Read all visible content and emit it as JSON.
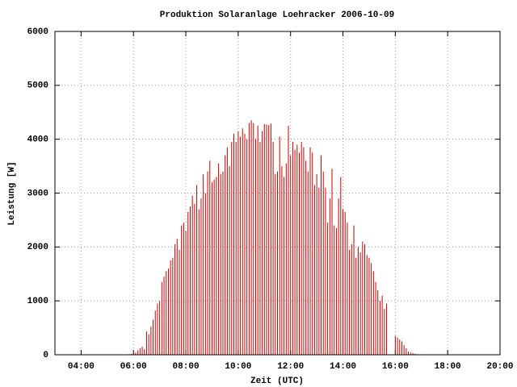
{
  "chart_data": {
    "type": "impulses",
    "title": "Produktion Solaranlage Loehracker 2006-10-09",
    "x_label": "Zeit (UTC)",
    "y_label": "Leistung [W]",
    "color": "#cc0000",
    "grid": true,
    "xlim": [
      "03:00",
      "20:00"
    ],
    "xticks": [
      "04:00",
      "06:00",
      "08:00",
      "10:00",
      "12:00",
      "14:00",
      "16:00",
      "18:00",
      "20:00"
    ],
    "ylim": [
      0,
      6000
    ],
    "yticks": [
      0,
      1000,
      2000,
      3000,
      4000,
      5000,
      6000
    ],
    "x": [
      "05:45",
      "05:50",
      "05:55",
      "06:00",
      "06:05",
      "06:10",
      "06:15",
      "06:20",
      "06:25",
      "06:30",
      "06:35",
      "06:40",
      "06:45",
      "06:50",
      "06:55",
      "07:00",
      "07:05",
      "07:10",
      "07:15",
      "07:20",
      "07:25",
      "07:30",
      "07:35",
      "07:40",
      "07:45",
      "07:50",
      "07:55",
      "08:00",
      "08:05",
      "08:10",
      "08:15",
      "08:20",
      "08:25",
      "08:30",
      "08:35",
      "08:40",
      "08:45",
      "08:50",
      "08:55",
      "09:00",
      "09:05",
      "09:10",
      "09:15",
      "09:20",
      "09:25",
      "09:30",
      "09:35",
      "09:40",
      "09:45",
      "09:50",
      "09:55",
      "10:00",
      "10:05",
      "10:10",
      "10:15",
      "10:20",
      "10:25",
      "10:30",
      "10:35",
      "10:40",
      "10:45",
      "10:50",
      "10:55",
      "11:00",
      "11:05",
      "11:10",
      "11:15",
      "11:20",
      "11:25",
      "11:30",
      "11:35",
      "11:40",
      "11:45",
      "11:50",
      "11:55",
      "12:00",
      "12:05",
      "12:10",
      "12:15",
      "12:20",
      "12:25",
      "12:30",
      "12:35",
      "12:40",
      "12:45",
      "12:50",
      "12:55",
      "13:00",
      "13:05",
      "13:10",
      "13:15",
      "13:20",
      "13:25",
      "13:30",
      "13:35",
      "13:40",
      "13:45",
      "13:50",
      "13:55",
      "14:00",
      "14:05",
      "14:10",
      "14:15",
      "14:20",
      "14:25",
      "14:30",
      "14:35",
      "14:40",
      "14:45",
      "14:50",
      "14:55",
      "15:00",
      "15:05",
      "15:10",
      "15:15",
      "15:20",
      "15:25",
      "15:30",
      "15:35",
      "15:40",
      "15:45",
      "15:50",
      "15:55",
      "16:00",
      "16:05",
      "16:10",
      "16:15",
      "16:20",
      "16:25",
      "16:30",
      "16:35",
      "16:40",
      "16:45",
      "16:50",
      "16:55",
      "17:00"
    ],
    "values": [
      5,
      10,
      15,
      20,
      40,
      80,
      120,
      150,
      100,
      430,
      380,
      520,
      650,
      820,
      950,
      1000,
      1350,
      1450,
      1550,
      1600,
      1750,
      1800,
      2050,
      2150,
      1950,
      2400,
      2450,
      2300,
      2650,
      2750,
      2950,
      2800,
      3150,
      2700,
      2900,
      3350,
      3000,
      3400,
      3600,
      3200,
      3250,
      3300,
      3550,
      3350,
      3400,
      3700,
      3850,
      3500,
      3950,
      4100,
      3950,
      4150,
      4050,
      4200,
      4100,
      4000,
      4300,
      4350,
      4300,
      4000,
      4250,
      3950,
      4150,
      4280,
      4270,
      4260,
      4290,
      3950,
      3350,
      3400,
      4050,
      3500,
      3300,
      3550,
      4250,
      3700,
      3950,
      3800,
      3900,
      3750,
      3950,
      3850,
      3600,
      3400,
      3850,
      3750,
      3150,
      3350,
      3100,
      3700,
      3400,
      3100,
      2450,
      2900,
      3450,
      2400,
      2350,
      2900,
      3300,
      2700,
      2650,
      2450,
      1950,
      2050,
      2400,
      1800,
      2000,
      1900,
      2100,
      2050,
      1850,
      1800,
      1700,
      1550,
      1350,
      1200,
      1000,
      1100,
      850,
      950,
      0,
      0,
      0,
      350,
      320,
      280,
      250,
      180,
      120,
      60,
      40,
      30,
      20,
      10,
      5,
      5
    ]
  }
}
